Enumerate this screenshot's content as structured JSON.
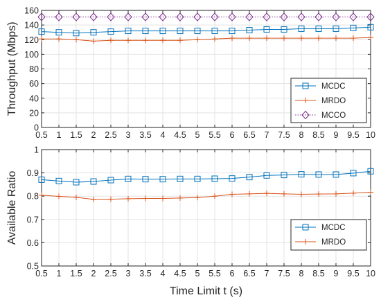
{
  "chart_data": [
    {
      "type": "line",
      "ylabel": "Throughput (Mbps)",
      "xlabel": "",
      "xlim": [
        0.5,
        10
      ],
      "ylim": [
        0,
        160
      ],
      "grid": true,
      "legend_position": "lower-right",
      "x_ticks": [
        "0.5",
        "1",
        "1.5",
        "2",
        "2.5",
        "3",
        "3.5",
        "4",
        "4.5",
        "5",
        "5.5",
        "6",
        "6.5",
        "7",
        "7.5",
        "8",
        "8.5",
        "9",
        "9.5",
        "10"
      ],
      "y_ticks": [
        "0",
        "20",
        "40",
        "60",
        "80",
        "100",
        "120",
        "140",
        "160"
      ],
      "x": [
        0.5,
        1,
        1.5,
        2,
        2.5,
        3,
        3.5,
        4,
        4.5,
        5,
        5.5,
        6,
        6.5,
        7,
        7.5,
        8,
        8.5,
        9,
        9.5,
        10
      ],
      "series": [
        {
          "name": "MCDC",
          "color": "#0072BD",
          "marker": "square",
          "line": "solid",
          "values": [
            131,
            130,
            129,
            130,
            131,
            132,
            132,
            132,
            132,
            132,
            132,
            132,
            133,
            134,
            134,
            135,
            135,
            135,
            136,
            137
          ]
        },
        {
          "name": "MRDO",
          "color": "#D95319",
          "marker": "plus",
          "line": "solid",
          "values": [
            121,
            121,
            120,
            118,
            119,
            119,
            119,
            119,
            119,
            120,
            121,
            122,
            122,
            122,
            122,
            122,
            122,
            122,
            122,
            123
          ]
        },
        {
          "name": "MCCO",
          "color": "#7E2F8E",
          "marker": "diamond",
          "line": "dotted",
          "values": [
            151,
            151,
            151,
            151,
            151,
            151,
            151,
            151,
            151,
            151,
            151,
            151,
            151,
            151,
            151,
            151,
            151,
            151,
            151,
            151
          ]
        }
      ]
    },
    {
      "type": "line",
      "ylabel": "Available Ratio",
      "xlabel": "Time Limit t (s)",
      "xlim": [
        0.5,
        10
      ],
      "ylim": [
        0.5,
        1
      ],
      "grid": true,
      "legend_position": "lower-right",
      "x_ticks": [
        "0.5",
        "1",
        "1.5",
        "2",
        "2.5",
        "3",
        "3.5",
        "4",
        "4.5",
        "5",
        "5.5",
        "6",
        "6.5",
        "7",
        "7.5",
        "8",
        "8.5",
        "9",
        "9.5",
        "10"
      ],
      "y_ticks": [
        "0.5",
        "0.6",
        "0.7",
        "0.8",
        "0.9",
        "1"
      ],
      "x": [
        0.5,
        1,
        1.5,
        2,
        2.5,
        3,
        3.5,
        4,
        4.5,
        5,
        5.5,
        6,
        6.5,
        7,
        7.5,
        8,
        8.5,
        9,
        9.5,
        10
      ],
      "series": [
        {
          "name": "MCDC",
          "color": "#0072BD",
          "marker": "square",
          "line": "solid",
          "values": [
            0.871,
            0.865,
            0.86,
            0.863,
            0.869,
            0.874,
            0.873,
            0.873,
            0.874,
            0.874,
            0.875,
            0.876,
            0.882,
            0.889,
            0.891,
            0.894,
            0.893,
            0.893,
            0.899,
            0.907
          ]
        },
        {
          "name": "MRDO",
          "color": "#D95319",
          "marker": "plus",
          "line": "solid",
          "values": [
            0.804,
            0.799,
            0.795,
            0.786,
            0.787,
            0.789,
            0.79,
            0.79,
            0.792,
            0.794,
            0.8,
            0.808,
            0.81,
            0.812,
            0.81,
            0.808,
            0.809,
            0.81,
            0.813,
            0.817
          ]
        }
      ]
    }
  ]
}
